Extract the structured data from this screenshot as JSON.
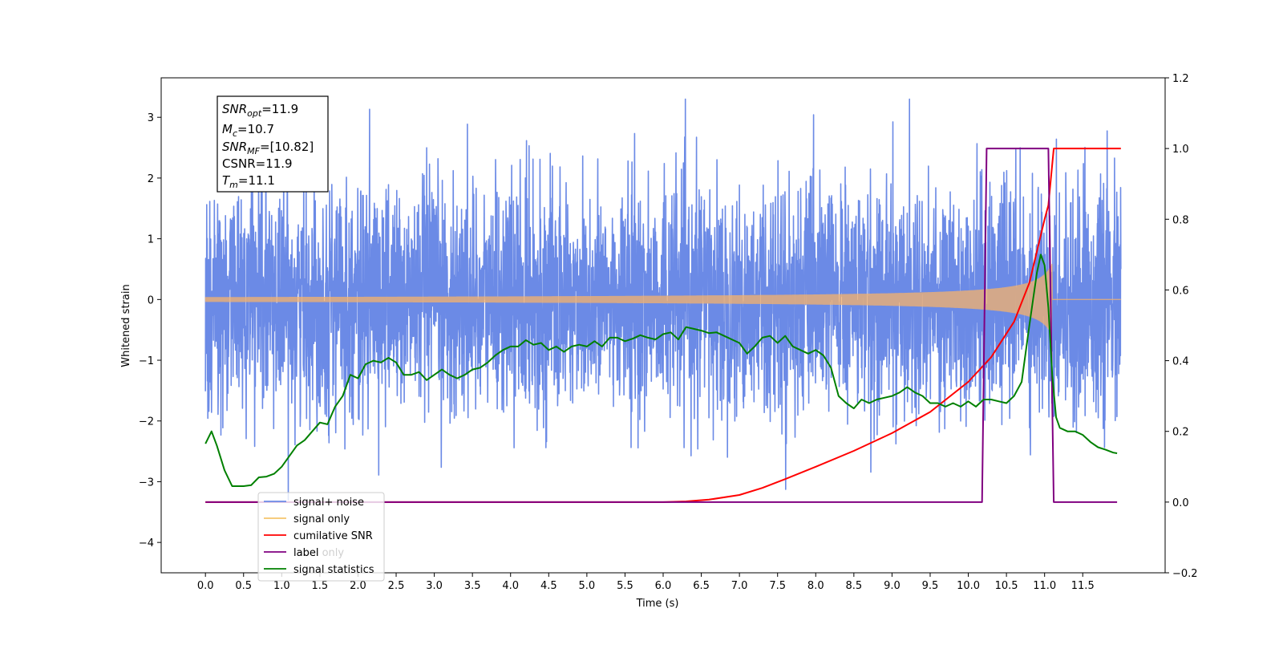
{
  "chart_data": {
    "type": "line",
    "xlabel": "Time (s)",
    "ylabel": "Whitened strain",
    "xlim": [
      -0.58,
      12.58
    ],
    "ylim": [
      -4.5,
      3.65
    ],
    "y2lim": [
      -0.2,
      1.2
    ],
    "x_ticks": [
      "0.0",
      "0.5",
      "1.0",
      "1.5",
      "2.0",
      "2.5",
      "3.0",
      "3.5",
      "4.0",
      "4.5",
      "5.0",
      "5.5",
      "6.0",
      "6.5",
      "7.0",
      "7.5",
      "8.0",
      "8.5",
      "9.0",
      "9.5",
      "10.0",
      "10.5",
      "11.0",
      "11.5"
    ],
    "y_ticks": [
      "3",
      "2",
      "1",
      "0",
      "−1",
      "−2",
      "−3",
      "−4"
    ],
    "y2_ticks": [
      "1.2",
      "1.0",
      "0.8",
      "0.6",
      "0.4",
      "0.2",
      "0.0",
      "−0.2"
    ],
    "annotation": {
      "snr_opt": "=11.9",
      "mc": "=10.7",
      "snr_mf": "=[10.82]",
      "csnr": "CSNR=11.9",
      "tm": "=11.1"
    },
    "legend": {
      "placement": "lower-left",
      "entries": [
        "signal+ noise",
        "signal only",
        "cumilative SNR",
        "label",
        "signal statistics"
      ],
      "ghost_text": "label only"
    },
    "series": [
      {
        "name": "signal+ noise",
        "color": "#6b8ae6",
        "axis": "left",
        "description": "noise band",
        "x_range": [
          0.0,
          12.0
        ],
        "std": 1.0
      },
      {
        "name": "signal only",
        "color": "#f5b26b",
        "axis": "left",
        "chirp_end": 11.1,
        "peak_amplitude": 0.6
      },
      {
        "name": "cumilative SNR",
        "color": "#ff0000",
        "axis": "right",
        "x": [
          0.0,
          6.0,
          6.3,
          6.6,
          7.0,
          7.3,
          7.6,
          8.0,
          8.5,
          9.0,
          9.5,
          10.0,
          10.3,
          10.6,
          10.8,
          11.0,
          11.05,
          11.12,
          12.0
        ],
        "y": [
          0.0,
          0.0,
          0.002,
          0.007,
          0.02,
          0.04,
          0.065,
          0.1,
          0.145,
          0.195,
          0.255,
          0.34,
          0.41,
          0.51,
          0.62,
          0.8,
          0.84,
          1.0,
          1.0
        ]
      },
      {
        "name": "label",
        "color": "#800080",
        "axis": "right",
        "x": [
          0.0,
          10.18,
          10.24,
          11.05,
          11.12,
          11.95
        ],
        "y": [
          0.0,
          0.0,
          1.0,
          1.0,
          0.0,
          0.0
        ]
      },
      {
        "name": "signal statistics",
        "color": "#008000",
        "axis": "right",
        "x": [
          0.0,
          0.08,
          0.15,
          0.25,
          0.35,
          0.5,
          0.6,
          0.7,
          0.8,
          0.9,
          1.0,
          1.1,
          1.2,
          1.3,
          1.4,
          1.5,
          1.6,
          1.7,
          1.8,
          1.9,
          2.0,
          2.1,
          2.2,
          2.3,
          2.4,
          2.5,
          2.6,
          2.7,
          2.8,
          2.9,
          3.0,
          3.1,
          3.2,
          3.3,
          3.4,
          3.5,
          3.6,
          3.7,
          3.8,
          3.9,
          4.0,
          4.1,
          4.2,
          4.3,
          4.4,
          4.5,
          4.6,
          4.7,
          4.8,
          4.9,
          5.0,
          5.1,
          5.2,
          5.3,
          5.4,
          5.5,
          5.6,
          5.7,
          5.8,
          5.9,
          6.0,
          6.1,
          6.2,
          6.3,
          6.4,
          6.5,
          6.6,
          6.7,
          6.8,
          6.9,
          7.0,
          7.1,
          7.2,
          7.3,
          7.4,
          7.5,
          7.6,
          7.7,
          7.8,
          7.9,
          8.0,
          8.1,
          8.2,
          8.3,
          8.4,
          8.5,
          8.6,
          8.7,
          8.8,
          8.9,
          9.0,
          9.1,
          9.2,
          9.3,
          9.4,
          9.5,
          9.6,
          9.7,
          9.8,
          9.9,
          10.0,
          10.1,
          10.2,
          10.3,
          10.4,
          10.5,
          10.6,
          10.7,
          10.8,
          10.9,
          10.95,
          11.0,
          11.05,
          11.1,
          11.15,
          11.2,
          11.3,
          11.4,
          11.5,
          11.6,
          11.7,
          11.8,
          11.9,
          11.95
        ],
        "y": [
          0.165,
          0.2,
          0.16,
          0.09,
          0.045,
          0.045,
          0.048,
          0.07,
          0.072,
          0.08,
          0.1,
          0.13,
          0.16,
          0.175,
          0.2,
          0.225,
          0.22,
          0.27,
          0.3,
          0.36,
          0.35,
          0.39,
          0.4,
          0.395,
          0.408,
          0.395,
          0.36,
          0.36,
          0.368,
          0.345,
          0.36,
          0.375,
          0.36,
          0.35,
          0.36,
          0.375,
          0.38,
          0.395,
          0.415,
          0.43,
          0.44,
          0.44,
          0.458,
          0.445,
          0.45,
          0.43,
          0.44,
          0.425,
          0.44,
          0.445,
          0.44,
          0.455,
          0.44,
          0.465,
          0.465,
          0.455,
          0.462,
          0.472,
          0.465,
          0.46,
          0.475,
          0.48,
          0.46,
          0.495,
          0.49,
          0.485,
          0.478,
          0.48,
          0.47,
          0.46,
          0.45,
          0.42,
          0.44,
          0.465,
          0.47,
          0.45,
          0.47,
          0.44,
          0.43,
          0.42,
          0.43,
          0.415,
          0.38,
          0.3,
          0.28,
          0.265,
          0.29,
          0.28,
          0.29,
          0.295,
          0.3,
          0.31,
          0.325,
          0.31,
          0.3,
          0.28,
          0.28,
          0.27,
          0.28,
          0.27,
          0.285,
          0.27,
          0.29,
          0.29,
          0.285,
          0.28,
          0.3,
          0.34,
          0.5,
          0.65,
          0.7,
          0.67,
          0.55,
          0.36,
          0.24,
          0.21,
          0.2,
          0.2,
          0.19,
          0.17,
          0.155,
          0.148,
          0.14,
          0.138
        ]
      }
    ]
  }
}
